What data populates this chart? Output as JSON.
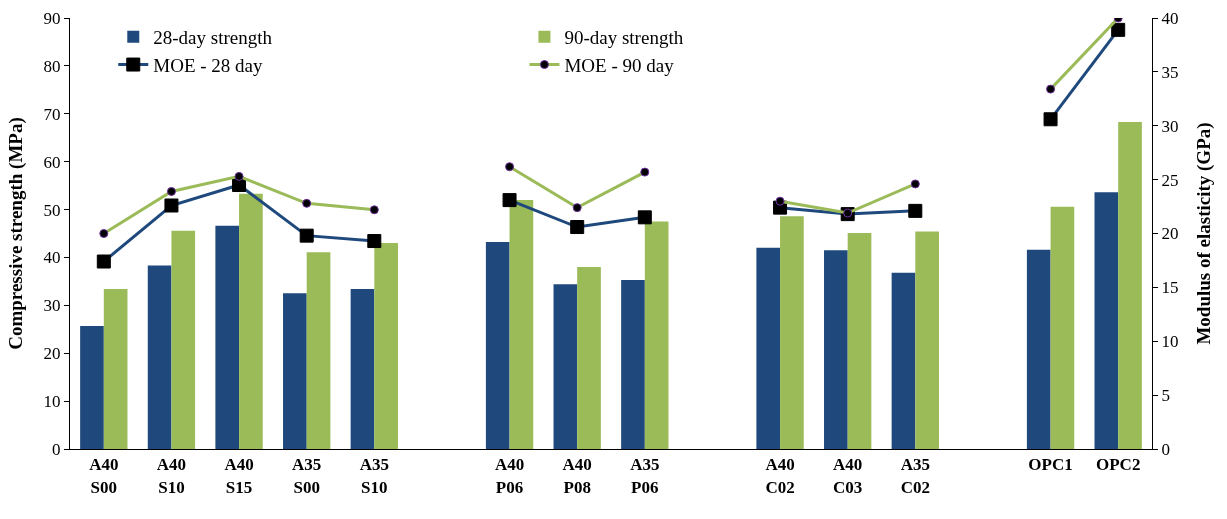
{
  "chart_data": {
    "type": "bar",
    "ylabel": "Compressive strength (MPa)",
    "y2label": "Modulus of elasticity (GPa)",
    "categories": [
      "A40\nS00",
      "A40\nS10",
      "A40\nS15",
      "A35\nS00",
      "A35\nS10",
      null,
      "A40\nP06",
      "A40\nP08",
      "A35\nP06",
      null,
      "A40\nC02",
      "A40\nC03",
      "A35\nC02",
      null,
      "OPC1",
      "OPC2"
    ],
    "series": [
      {
        "name": "28-day strength",
        "color": "#1f497d",
        "values": [
          25.7,
          38.3,
          46.6,
          32.5,
          33.4,
          null,
          43.2,
          34.4,
          35.3,
          null,
          42,
          41.5,
          36.8,
          null,
          41.6,
          53.6
        ]
      },
      {
        "name": "90-day strength",
        "color": "#9bbb59",
        "values": [
          33.4,
          45.6,
          53.3,
          41.1,
          43,
          null,
          52,
          38,
          47.5,
          null,
          48.6,
          45.1,
          45.4,
          null,
          50.6,
          68.3
        ]
      },
      {
        "name": "MOE - 28 day",
        "type": "line",
        "axis": "y2",
        "marker": "square",
        "color": "#1f497d",
        "values": [
          17.4,
          22.6,
          24.5,
          19.8,
          19.3,
          null,
          23.1,
          20.6,
          21.5,
          null,
          22.4,
          21.8,
          22.1,
          null,
          30.6,
          38.9
        ]
      },
      {
        "name": "MOE - 90 day",
        "type": "line",
        "axis": "y2",
        "marker": "circle",
        "color": "#9bbb59",
        "values": [
          20.0,
          23.9,
          25.3,
          22.8,
          22.2,
          null,
          26.2,
          22.4,
          25.7,
          null,
          23.0,
          21.9,
          24.6,
          null,
          33.4,
          40.0
        ]
      }
    ],
    "ylim": [
      0,
      90
    ],
    "yticks": [
      0,
      10,
      20,
      30,
      40,
      50,
      60,
      70,
      80,
      90
    ],
    "y2lim": [
      0,
      40
    ],
    "y2ticks": [
      0,
      5,
      10,
      15,
      20,
      25,
      30,
      35,
      40
    ],
    "grid": false,
    "legend": "top left"
  }
}
